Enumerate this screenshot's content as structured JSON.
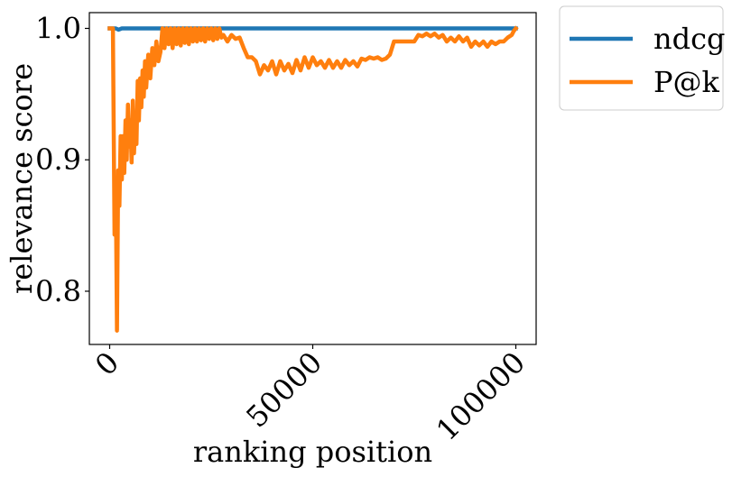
{
  "chart_data": {
    "type": "line",
    "xlabel": "ranking position",
    "ylabel": "relevance score",
    "xlim": [
      -5000,
      105000
    ],
    "ylim": [
      0.7595,
      1.012
    ],
    "xticks": [
      0,
      50000,
      100000
    ],
    "xtick_labels": [
      "0",
      "50000",
      "100000"
    ],
    "yticks": [
      0.8,
      0.9,
      1.0
    ],
    "ytick_labels": [
      "0.8",
      "0.9",
      "1.0"
    ],
    "grid": false,
    "legend_position": "outside-top-right",
    "series": [
      {
        "name": "ndcg",
        "color": "#1f77b4",
        "x": [
          0,
          1500,
          2200,
          3000,
          100000
        ],
        "y": [
          1.0,
          1.0,
          0.999,
          1.0,
          1.0
        ]
      },
      {
        "name": "P@k",
        "color": "#ff7f0e",
        "x": [
          0,
          800,
          1200,
          1500,
          1800,
          2100,
          2400,
          2700,
          3000,
          3300,
          3600,
          3900,
          4200,
          4500,
          4800,
          5100,
          5400,
          5700,
          6000,
          6300,
          6600,
          6900,
          7200,
          7500,
          7800,
          8100,
          8400,
          8700,
          9000,
          9500,
          10000,
          10500,
          11000,
          11500,
          12000,
          12500,
          13000,
          13500,
          14000,
          14500,
          15000,
          15500,
          16000,
          16500,
          17000,
          17500,
          18000,
          18500,
          19000,
          19500,
          20000,
          20500,
          21000,
          21500,
          22000,
          22500,
          23000,
          23500,
          24000,
          24500,
          25000,
          25500,
          26000,
          26500,
          27000,
          27500,
          28000,
          29000,
          30000,
          31000,
          32000,
          33000,
          34000,
          35000,
          36000,
          37000,
          38000,
          39000,
          40000,
          41000,
          42000,
          43000,
          44000,
          45000,
          46000,
          47000,
          48000,
          49000,
          50000,
          51000,
          52000,
          53000,
          54000,
          55000,
          56000,
          57000,
          58000,
          59000,
          60000,
          61000,
          62000,
          63000,
          64000,
          65000,
          66000,
          67000,
          68000,
          69000,
          70000,
          72000,
          74000,
          75000,
          76000,
          77000,
          78000,
          79000,
          80000,
          81000,
          82000,
          83000,
          84000,
          85000,
          86000,
          87000,
          88000,
          89000,
          90000,
          91000,
          92000,
          93000,
          94000,
          95000,
          96000,
          97000,
          98000,
          99000,
          99500,
          100000
        ],
        "y": [
          1.0,
          1.0,
          0.843,
          0.88,
          0.77,
          0.892,
          0.865,
          0.918,
          0.885,
          0.918,
          0.89,
          0.93,
          0.9,
          0.942,
          0.91,
          0.93,
          0.898,
          0.945,
          0.905,
          0.935,
          0.912,
          0.96,
          0.93,
          0.962,
          0.94,
          0.968,
          0.948,
          0.975,
          0.955,
          0.98,
          0.962,
          0.985,
          0.972,
          0.99,
          0.975,
          0.982,
          1.0,
          0.985,
          1.0,
          0.988,
          1.0,
          0.985,
          1.0,
          0.988,
          1.0,
          0.987,
          1.0,
          0.989,
          1.0,
          0.988,
          1.0,
          0.99,
          1.0,
          0.99,
          1.0,
          0.991,
          1.0,
          0.99,
          1.0,
          0.992,
          1.0,
          0.991,
          1.0,
          0.992,
          1.0,
          0.993,
          0.995,
          0.99,
          0.995,
          0.992,
          0.993,
          0.985,
          0.978,
          0.978,
          0.975,
          0.965,
          0.972,
          0.968,
          0.975,
          0.965,
          0.975,
          0.968,
          0.973,
          0.966,
          0.976,
          0.968,
          0.978,
          0.97,
          0.978,
          0.972,
          0.975,
          0.97,
          0.976,
          0.97,
          0.975,
          0.97,
          0.976,
          0.972,
          0.975,
          0.971,
          0.977,
          0.976,
          0.978,
          0.977,
          0.978,
          0.976,
          0.977,
          0.98,
          0.99,
          0.99,
          0.99,
          0.99,
          0.995,
          0.994,
          0.996,
          0.994,
          0.996,
          0.993,
          0.995,
          0.99,
          0.993,
          0.99,
          0.994,
          0.99,
          0.993,
          0.986,
          0.99,
          0.987,
          0.99,
          0.986,
          0.99,
          0.988,
          0.99,
          0.99,
          0.993,
          0.995,
          0.998,
          1.0
        ]
      }
    ]
  }
}
